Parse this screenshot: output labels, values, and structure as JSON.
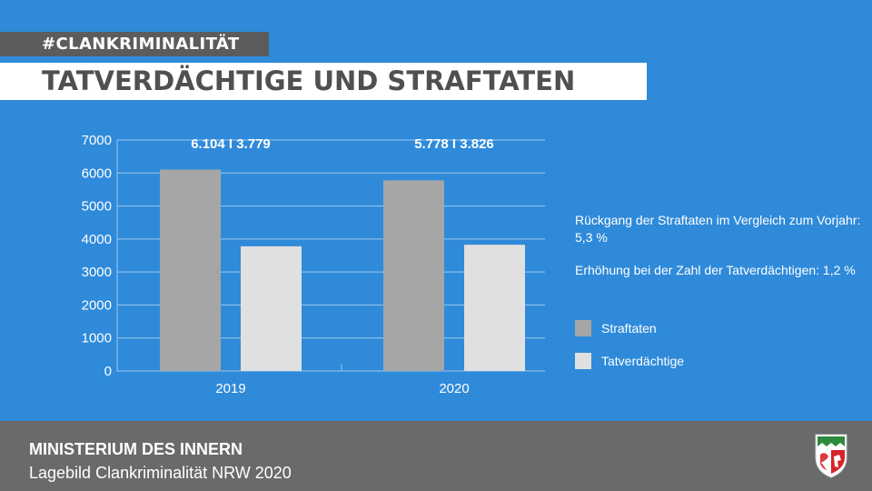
{
  "header": {
    "hashtag": "#CLANKRIMINALITÄT",
    "title": "TATVERDÄCHTIGE UND STRAFTATEN"
  },
  "colors": {
    "background": "#2f8ad9",
    "straftaten": "#a6a6a6",
    "tatverdaechtige": "#e0e0e0",
    "footer": "#6a6a6a",
    "title_bar": "#ffffff",
    "hashtag_bar": "#5c5c5c"
  },
  "chart_data": {
    "type": "bar",
    "categories": [
      "2019",
      "2020"
    ],
    "series": [
      {
        "name": "Straftaten",
        "values": [
          6104,
          5778
        ]
      },
      {
        "name": "Tatverdächtige",
        "values": [
          3779,
          3826
        ]
      }
    ],
    "data_labels": [
      "6.104 I 3.779",
      "5.778 I 3.826"
    ],
    "ylim": [
      0,
      7000
    ],
    "yticks": [
      0,
      1000,
      2000,
      3000,
      4000,
      5000,
      6000,
      7000
    ],
    "grid": true,
    "legend_position": "right"
  },
  "notes": {
    "note1": "Rückgang der Straftaten im Vergleich zum Vorjahr: 5,3 %",
    "note2": "Erhöhung bei der Zahl der Tatverdächtigen: 1,2 %"
  },
  "legend": {
    "straftaten_label": "Straftaten",
    "tatverdaechtige_label": "Tatverdächtige"
  },
  "footer": {
    "ministry": "MINISTERIUM DES INNERN",
    "subtitle": "Lagebild Clankriminalität NRW 2020"
  },
  "icons": {
    "crest": "nrw-coat-of-arms-icon"
  }
}
